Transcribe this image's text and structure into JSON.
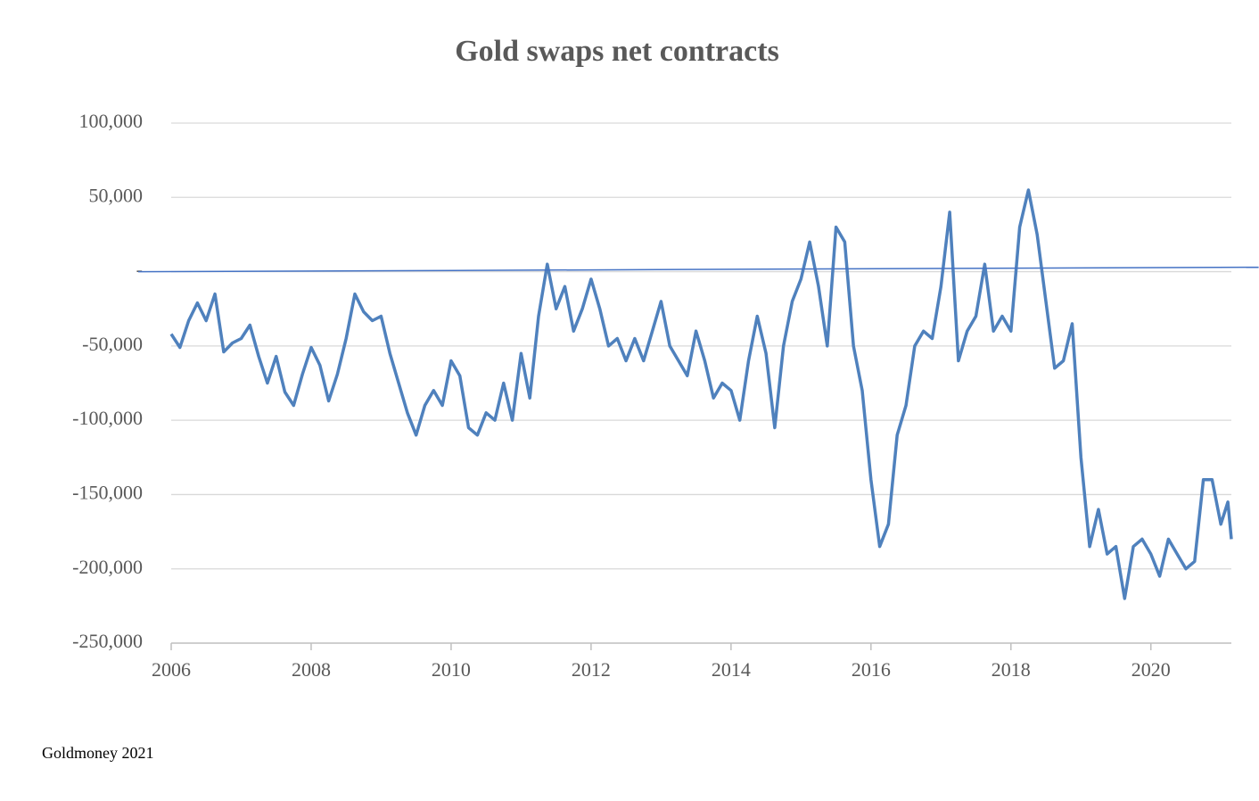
{
  "chart_data": {
    "type": "line",
    "title": "Gold swaps net  contracts",
    "source": "Goldmoney 2021",
    "xlim": [
      2006,
      2021.15
    ],
    "xticks": [
      2006,
      2008,
      2010,
      2012,
      2014,
      2016,
      2018,
      2020
    ],
    "ylim": [
      -250000,
      100000
    ],
    "yticks": [
      {
        "value": -250000,
        "label": "-250,000"
      },
      {
        "value": -200000,
        "label": "-200,000"
      },
      {
        "value": -150000,
        "label": "-150,000"
      },
      {
        "value": -100000,
        "label": "-100,000"
      },
      {
        "value": -50000,
        "label": "-50,000"
      },
      {
        "value": 0,
        "label": "-"
      },
      {
        "value": 50000,
        "label": "50,000"
      },
      {
        "value": 100000,
        "label": "100,000"
      }
    ],
    "grid": true,
    "series": [
      {
        "color": "#4f81bd",
        "x": [
          2006,
          2006.125,
          2006.25,
          2006.375,
          2006.5,
          2006.625,
          2006.75,
          2006.875,
          2007,
          2007.125,
          2007.25,
          2007.375,
          2007.5,
          2007.625,
          2007.75,
          2007.875,
          2008,
          2008.125,
          2008.25,
          2008.375,
          2008.5,
          2008.625,
          2008.75,
          2008.875,
          2009,
          2009.125,
          2009.25,
          2009.375,
          2009.5,
          2009.625,
          2009.75,
          2009.875,
          2010,
          2010.125,
          2010.25,
          2010.375,
          2010.5,
          2010.625,
          2010.75,
          2010.875,
          2011,
          2011.125,
          2011.25,
          2011.375,
          2011.5,
          2011.625,
          2011.75,
          2011.875,
          2012,
          2012.125,
          2012.25,
          2012.375,
          2012.5,
          2012.625,
          2012.75,
          2012.875,
          2013,
          2013.125,
          2013.25,
          2013.375,
          2013.5,
          2013.625,
          2013.75,
          2013.875,
          2014,
          2014.125,
          2014.25,
          2014.375,
          2014.5,
          2014.625,
          2014.75,
          2014.875,
          2015,
          2015.125,
          2015.25,
          2015.375,
          2015.5,
          2015.625,
          2015.75,
          2015.875,
          2016,
          2016.125,
          2016.25,
          2016.375,
          2016.5,
          2016.625,
          2016.75,
          2016.875,
          2017,
          2017.125,
          2017.25,
          2017.375,
          2017.5,
          2017.625,
          2017.75,
          2017.875,
          2018,
          2018.125,
          2018.25,
          2018.375,
          2018.5,
          2018.625,
          2018.75,
          2018.875,
          2019,
          2019.125,
          2019.25,
          2019.375,
          2019.5,
          2019.625,
          2019.75,
          2019.875,
          2020,
          2020.125,
          2020.25,
          2020.375,
          2020.5,
          2020.625,
          2020.75,
          2020.875,
          2021,
          2021.1,
          2021.15
        ],
        "values": [
          -42000,
          -51000,
          -33000,
          -21000,
          -33000,
          -15000,
          -54000,
          -48000,
          -45000,
          -36000,
          -57000,
          -75000,
          -57000,
          -81000,
          -90000,
          -69000,
          -51000,
          -63000,
          -87000,
          -69000,
          -45000,
          -15000,
          -27000,
          -33000,
          -30000,
          -55000,
          -75000,
          -95000,
          -110000,
          -90000,
          -80000,
          -90000,
          -60000,
          -70000,
          -105000,
          -110000,
          -95000,
          -100000,
          -75000,
          -100000,
          -55000,
          -85000,
          -30000,
          5000,
          -25000,
          -10000,
          -40000,
          -25000,
          -5000,
          -25000,
          -50000,
          -45000,
          -60000,
          -45000,
          -60000,
          -40000,
          -20000,
          -50000,
          -60000,
          -70000,
          -40000,
          -60000,
          -85000,
          -75000,
          -80000,
          -100000,
          -60000,
          -30000,
          -55000,
          -105000,
          -50000,
          -20000,
          -5000,
          20000,
          -10000,
          -50000,
          30000,
          20000,
          -50000,
          -80000,
          -140000,
          -185000,
          -170000,
          -110000,
          -90000,
          -50000,
          -40000,
          -45000,
          -10000,
          40000,
          -60000,
          -40000,
          -30000,
          5000,
          -40000,
          -30000,
          -40000,
          30000,
          55000,
          25000,
          -20000,
          -65000,
          -60000,
          -35000,
          -125000,
          -185000,
          -160000,
          -190000,
          -185000,
          -220000,
          -185000,
          -180000,
          -190000,
          -205000,
          -180000,
          -190000,
          -200000,
          -195000,
          -140000,
          -140000,
          -170000,
          -155000,
          -180000
        ]
      },
      {
        "color": "#4472c4",
        "x": [
          2005.53,
          2021.54
        ],
        "values": [
          0,
          3000
        ]
      }
    ]
  }
}
